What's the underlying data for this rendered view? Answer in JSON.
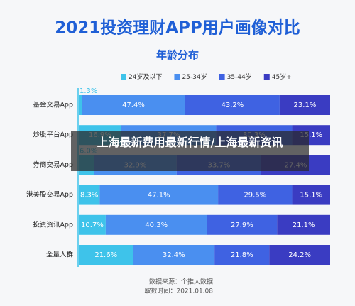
{
  "chart_data": {
    "type": "stacked-bar-horizontal",
    "title": "2021投资理财APP用户画像对比",
    "subtitle": "年龄分布",
    "categories": [
      "基金交易App",
      "炒股平台App",
      "券商交易App",
      "港美股交易App",
      "投资资讯App",
      "全量人群"
    ],
    "series": [
      {
        "name": "24岁及以下",
        "color": "#3ec3ea",
        "values": [
          1.3,
          16.9,
          6.0,
          8.3,
          10.7,
          21.6
        ],
        "value_labels": [
          "1.3%",
          "16.9%",
          "6.0%",
          "8.3%",
          "10.7%",
          "21.6%"
        ]
      },
      {
        "name": "25-34岁",
        "color": "#4a8ff0",
        "values": [
          47.4,
          37.7,
          32.9,
          47.1,
          40.3,
          32.4
        ],
        "value_labels": [
          "47.4%",
          "37.7%",
          "32.9%",
          "47.1%",
          "40.3%",
          "32.4%"
        ]
      },
      {
        "name": "35-44岁",
        "color": "#3f62e2",
        "values": [
          43.2,
          30.3,
          33.7,
          29.5,
          27.9,
          21.8
        ],
        "value_labels": [
          "43.2%",
          "30.3%",
          "33.7%",
          "29.5%",
          "27.9%",
          "21.8%"
        ]
      },
      {
        "name": "45岁+",
        "color": "#3a3cc2",
        "values": [
          23.1,
          15.1,
          27.4,
          15.1,
          21.1,
          24.2
        ],
        "value_labels": [
          "23.1%",
          "15.1%",
          "27.4%",
          "15.1%",
          "21.1%",
          "24.2%"
        ]
      }
    ],
    "source": "数据来源：个推大数据",
    "date": "取数时间：2021.01.08"
  },
  "overlay": {
    "headline": "上海最新费用最新行情/上海最新资讯"
  }
}
